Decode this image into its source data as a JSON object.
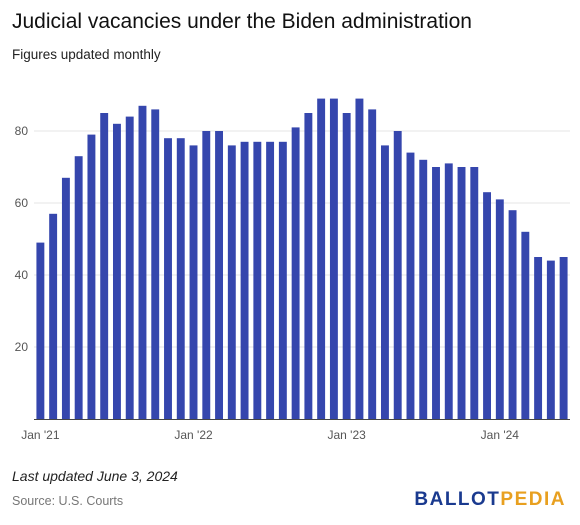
{
  "title": "Judicial vacancies under the Biden administration",
  "subtitle": "Figures updated monthly",
  "footer": {
    "updated": "Last updated June 3, 2024",
    "source": "Source: U.S. Courts",
    "logo_part1": "BALLOT",
    "logo_part2": "PEDIA"
  },
  "colors": {
    "bar": "#3546ad",
    "grid": "#e4e4e4",
    "axis": "#444444",
    "logo_blue": "#1a3a8f",
    "logo_gold": "#e8a020"
  },
  "chart_data": {
    "type": "bar",
    "title": "Judicial vacancies under the Biden administration",
    "subtitle": "Figures updated monthly",
    "xlabel": "",
    "ylabel": "",
    "ylim": [
      0,
      90
    ],
    "yticks": [
      20,
      40,
      60,
      80
    ],
    "xtick_labels": [
      {
        "index": 0,
        "label": "Jan '21"
      },
      {
        "index": 12,
        "label": "Jan '22"
      },
      {
        "index": 24,
        "label": "Jan '23"
      },
      {
        "index": 36,
        "label": "Jan '24"
      }
    ],
    "grid": true,
    "categories": [
      "Jan 2021",
      "Feb 2021",
      "Mar 2021",
      "Apr 2021",
      "May 2021",
      "Jun 2021",
      "Jul 2021",
      "Aug 2021",
      "Sep 2021",
      "Oct 2021",
      "Nov 2021",
      "Dec 2021",
      "Jan 2022",
      "Feb 2022",
      "Mar 2022",
      "Apr 2022",
      "May 2022",
      "Jun 2022",
      "Jul 2022",
      "Aug 2022",
      "Sep 2022",
      "Oct 2022",
      "Nov 2022",
      "Dec 2022",
      "Jan 2023",
      "Feb 2023",
      "Mar 2023",
      "Apr 2023",
      "May 2023",
      "Jun 2023",
      "Jul 2023",
      "Aug 2023",
      "Sep 2023",
      "Oct 2023",
      "Nov 2023",
      "Dec 2023",
      "Jan 2024",
      "Feb 2024",
      "Mar 2024",
      "Apr 2024",
      "May 2024",
      "Jun 2024"
    ],
    "values": [
      49,
      57,
      67,
      73,
      79,
      85,
      82,
      84,
      87,
      86,
      78,
      78,
      76,
      80,
      80,
      76,
      77,
      77,
      77,
      77,
      81,
      85,
      89,
      89,
      85,
      89,
      86,
      76,
      80,
      74,
      72,
      70,
      71,
      70,
      70,
      63,
      61,
      58,
      52,
      45,
      44,
      45
    ]
  }
}
